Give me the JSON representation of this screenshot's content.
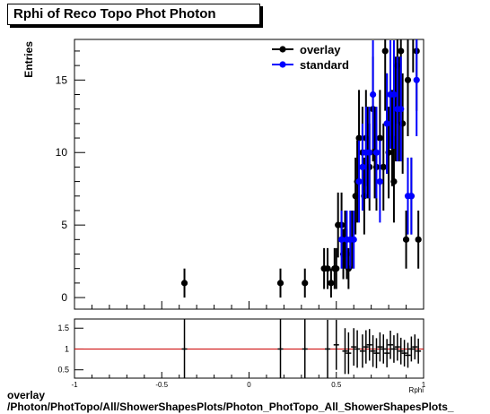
{
  "chart_data": [
    {
      "type": "scatter",
      "title": "Rphi of Reco Topo Phot Photon",
      "ylabel": "Entries",
      "xlim": [
        -1,
        1
      ],
      "ylim": [
        -0.8,
        17.8
      ],
      "yticks": [
        0,
        5,
        10,
        15
      ],
      "legend": "top-right",
      "series": [
        {
          "name": "overlay",
          "color": "#000000",
          "x": [
            -0.37,
            0.18,
            0.32,
            0.43,
            0.45,
            0.47,
            0.49,
            0.5,
            0.51,
            0.53,
            0.54,
            0.55,
            0.56,
            0.57,
            0.59,
            0.61,
            0.62,
            0.63,
            0.65,
            0.66,
            0.67,
            0.68,
            0.69,
            0.71,
            0.72,
            0.73,
            0.75,
            0.77,
            0.78,
            0.79,
            0.8,
            0.82,
            0.83,
            0.84,
            0.85,
            0.86,
            0.87,
            0.88,
            0.9,
            0.91,
            0.93,
            0.94,
            0.96,
            0.97
          ],
          "y": [
            1,
            1,
            1,
            2,
            2,
            1,
            2,
            2,
            5,
            5,
            3,
            4,
            3,
            2,
            4,
            7,
            8,
            11,
            10,
            7,
            11,
            10,
            9,
            13,
            10,
            9,
            11,
            9,
            17,
            12,
            10,
            11,
            8,
            13,
            16,
            13,
            17,
            12,
            4,
            15,
            7,
            20,
            17,
            4
          ],
          "err": [
            1,
            1,
            1,
            1.41,
            1.41,
            1,
            1.41,
            1.41,
            2.24,
            2.24,
            1.73,
            2,
            1.73,
            1.41,
            2,
            2.65,
            2.83,
            3.32,
            3.16,
            2.65,
            3.32,
            3.16,
            3,
            3.61,
            3.16,
            3,
            3.32,
            3,
            4.12,
            3.46,
            3.16,
            3.32,
            2.83,
            3.61,
            4,
            3.61,
            4.12,
            3.46,
            2,
            3.87,
            2.65,
            4.47,
            4.12,
            2
          ]
        },
        {
          "name": "standard",
          "color": "#0000ff",
          "x": [
            0.53,
            0.56,
            0.58,
            0.6,
            0.63,
            0.65,
            0.67,
            0.69,
            0.71,
            0.73,
            0.75,
            0.79,
            0.81,
            0.83,
            0.85,
            0.87,
            0.91,
            0.93,
            0.96
          ],
          "y": [
            4,
            4,
            4,
            4,
            8,
            9,
            10,
            10,
            14,
            10,
            8,
            12,
            14,
            14,
            13,
            13,
            7,
            7,
            15
          ],
          "err": [
            2,
            2,
            2,
            2,
            2.83,
            3,
            3.16,
            3.16,
            3.74,
            3.16,
            2.83,
            3.46,
            3.74,
            3.74,
            3.61,
            3.61,
            2.65,
            2.65,
            3.87
          ]
        }
      ]
    },
    {
      "type": "scatter",
      "title": "",
      "xlabel": "Rphi",
      "xlim": [
        -1,
        1
      ],
      "ylim": [
        0.3,
        1.72
      ],
      "xticks": [
        "-1",
        "-0.5",
        "0",
        "0.5",
        "1"
      ],
      "yticks": [
        "0.5",
        "1",
        "1.5"
      ],
      "reference_line": 1,
      "series": [
        {
          "name": "",
          "color": "#000000",
          "x": [
            -0.37,
            0.18,
            0.32,
            0.45,
            0.5,
            0.55,
            0.57,
            0.6,
            0.62,
            0.65,
            0.67,
            0.69,
            0.71,
            0.73,
            0.75,
            0.77,
            0.79,
            0.81,
            0.83,
            0.85,
            0.87,
            0.89,
            0.91,
            0.93,
            0.95,
            0.97
          ],
          "y": [
            1,
            1,
            1,
            1,
            1.1,
            0.95,
            0.9,
            1.05,
            1.0,
            0.95,
            1.05,
            1.1,
            0.95,
            0.9,
            1.05,
            1.0,
            0.9,
            1.1,
            1.0,
            1.05,
            0.95,
            0.9,
            0.85,
            1.0,
            1.05,
            0.95
          ],
          "err": [
            0.75,
            0.75,
            0.75,
            0.7,
            0.6,
            0.55,
            0.5,
            0.45,
            0.45,
            0.4,
            0.4,
            0.38,
            0.38,
            0.36,
            0.35,
            0.35,
            0.34,
            0.34,
            0.33,
            0.33,
            0.32,
            0.32,
            0.3,
            0.3,
            0.3,
            0.3
          ]
        }
      ]
    }
  ],
  "footer": {
    "line1": "overlay",
    "line2": "/Photon/PhotTopo/All/ShowerShapesPlots/Photon_PhotTopo_All_ShowerShapesPlots_"
  }
}
